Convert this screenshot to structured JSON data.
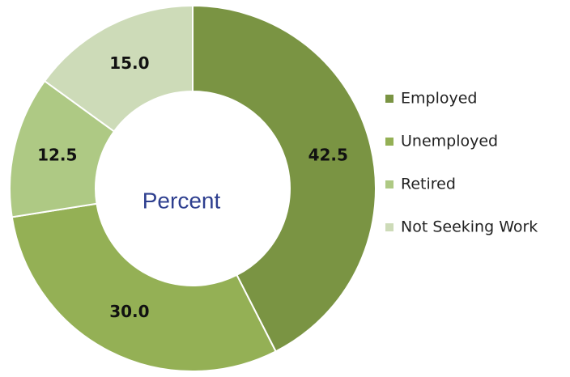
{
  "chart_data": {
    "type": "donut",
    "center_text": "Percent",
    "categories": [
      "Employed",
      "Unemployed",
      "Retired",
      "Not Seeking Work"
    ],
    "values": [
      42.5,
      30,
      12.5,
      15
    ],
    "value_labels": [
      "42.5",
      "30.0",
      "12.5",
      "15.0"
    ],
    "colors": [
      "#7a9443",
      "#94b055",
      "#aec984",
      "#cddbb8"
    ],
    "legend": "right"
  }
}
